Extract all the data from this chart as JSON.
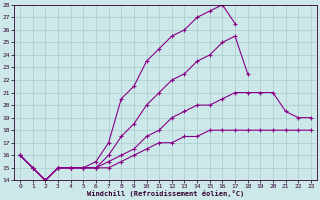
{
  "xlabel": "Windchill (Refroidissement éolien,°C)",
  "bg_color": "#cce8e8",
  "grid_color": "#aacccc",
  "line_color": "#880088",
  "xlim": [
    -0.5,
    23.5
  ],
  "ylim": [
    14,
    28
  ],
  "xticks": [
    0,
    1,
    2,
    3,
    4,
    5,
    6,
    7,
    8,
    9,
    10,
    11,
    12,
    13,
    14,
    15,
    16,
    17,
    18,
    19,
    20,
    21,
    22,
    23
  ],
  "yticks": [
    14,
    15,
    16,
    17,
    18,
    19,
    20,
    21,
    22,
    23,
    24,
    25,
    26,
    27,
    28
  ],
  "series": [
    {
      "x": [
        0,
        1,
        2,
        3,
        4,
        5,
        6,
        7,
        8,
        9,
        10,
        11,
        12,
        13,
        14,
        15,
        16,
        17,
        18,
        19,
        20,
        21,
        22,
        23
      ],
      "y": [
        16,
        15,
        14,
        15,
        15,
        15,
        15,
        15,
        15.5,
        16,
        16.5,
        17,
        17,
        17.5,
        17.5,
        18,
        18,
        18,
        18,
        18,
        18,
        18,
        18,
        18
      ]
    },
    {
      "x": [
        0,
        1,
        2,
        3,
        4,
        5,
        6,
        7,
        8,
        9,
        10,
        11,
        12,
        13,
        14,
        15,
        16,
        17,
        18,
        19,
        20,
        21,
        22,
        23
      ],
      "y": [
        16,
        15,
        14,
        15,
        15,
        15,
        15,
        15.5,
        16,
        16.5,
        17.5,
        18,
        19,
        19.5,
        20,
        20,
        20.5,
        21,
        21,
        21,
        21,
        19.5,
        19,
        19
      ]
    },
    {
      "x": [
        0,
        1,
        2,
        3,
        4,
        5,
        6,
        7,
        8,
        9,
        10,
        11,
        12,
        13,
        14,
        15,
        16,
        17,
        18,
        19,
        20,
        21,
        22,
        23
      ],
      "y": [
        16,
        15,
        14,
        15,
        15,
        15,
        15,
        16,
        17.5,
        18.5,
        20,
        21,
        22,
        22.5,
        23.5,
        24,
        25,
        25.5,
        22.5,
        null,
        null,
        null,
        null,
        null
      ]
    },
    {
      "x": [
        0,
        1,
        2,
        3,
        4,
        5,
        6,
        7,
        8,
        9,
        10,
        11,
        12,
        13,
        14,
        15,
        16,
        17,
        18,
        19,
        20,
        21,
        22,
        23
      ],
      "y": [
        16,
        15,
        14,
        15,
        15,
        15,
        15.5,
        17,
        20.5,
        21.5,
        23.5,
        24.5,
        25.5,
        26,
        27,
        27.5,
        28,
        26.5,
        null,
        null,
        null,
        null,
        null,
        null
      ]
    }
  ]
}
